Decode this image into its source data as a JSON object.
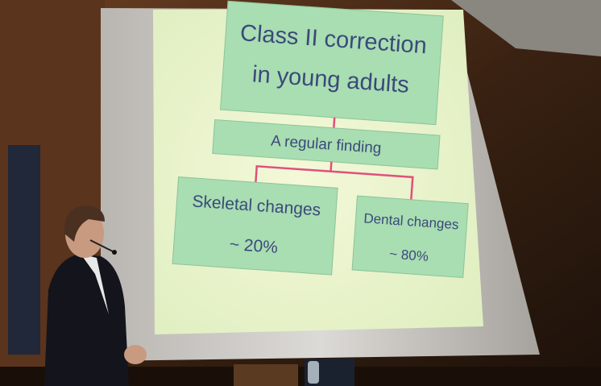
{
  "slide": {
    "title": [
      "Class II correction",
      "in young adults"
    ],
    "subtitle": "A regular finding",
    "boxes": [
      {
        "label": "Skeletal changes",
        "value": "~ 20%"
      },
      {
        "label": "Dental changes",
        "value": "~ 80%"
      }
    ]
  }
}
